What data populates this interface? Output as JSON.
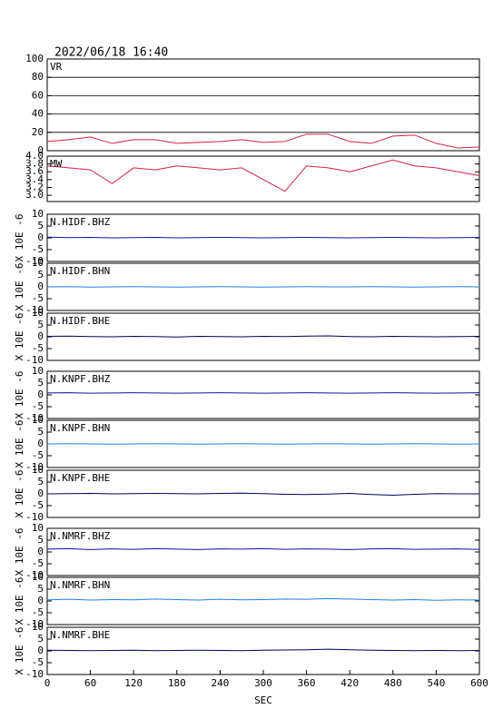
{
  "chart_data": [
    {
      "type": "line",
      "title": "2022/06/18 16:40",
      "ylim": [
        0,
        100
      ],
      "yticks": [
        0,
        20,
        40,
        60,
        80,
        100
      ],
      "grid": true,
      "xlim": [
        0,
        600
      ],
      "x": [
        0,
        30,
        60,
        90,
        120,
        150,
        180,
        210,
        240,
        270,
        300,
        330,
        360,
        390,
        420,
        450,
        480,
        510,
        540,
        570,
        600
      ],
      "series": [
        {
          "name": "VR",
          "color": "#d0204a",
          "values": [
            10,
            12,
            15,
            8,
            12,
            12,
            8,
            9,
            10,
            12,
            9,
            10,
            18,
            18,
            10,
            8,
            16,
            17,
            8,
            3,
            4
          ]
        }
      ]
    },
    {
      "type": "line",
      "ylim": [
        2.84,
        4.0
      ],
      "yticks": [
        {
          "value": 3,
          "label": "3.0"
        },
        {
          "value": 3.2,
          "label": "3.2"
        },
        {
          "value": 3.4,
          "label": "3.4"
        },
        {
          "value": 3.6,
          "label": "3.6"
        },
        {
          "value": 3.8,
          "label": "3.8"
        },
        {
          "value": 4,
          "label": "4.0"
        }
      ],
      "grid": false,
      "xlim": [
        0,
        600
      ],
      "x": [
        0,
        30,
        60,
        90,
        120,
        150,
        180,
        210,
        240,
        270,
        300,
        330,
        360,
        390,
        420,
        450,
        480,
        510,
        540,
        570,
        600
      ],
      "series": [
        {
          "name": "MW",
          "color": "#d0204a",
          "values": [
            3.75,
            3.7,
            3.65,
            3.3,
            3.7,
            3.65,
            3.75,
            3.7,
            3.65,
            3.7,
            3.4,
            3.1,
            3.75,
            3.7,
            3.6,
            3.75,
            3.9,
            3.75,
            3.7,
            3.6,
            3.5
          ]
        }
      ]
    },
    {
      "type": "line",
      "ylabel": "X 10E -6",
      "ylim": [
        -10,
        10
      ],
      "yticks": [
        -10,
        -5,
        0,
        5,
        10
      ],
      "xlim": [
        0,
        600
      ],
      "x": [
        0,
        30,
        60,
        90,
        120,
        150,
        180,
        210,
        240,
        270,
        300,
        330,
        360,
        390,
        420,
        450,
        480,
        510,
        540,
        570,
        600
      ],
      "series": [
        {
          "name": "N.HIDF.BHZ",
          "color": "#1010a0",
          "values": [
            0.3,
            0.1,
            0.2,
            0,
            0.1,
            0.2,
            0,
            0.1,
            0.2,
            0.1,
            0,
            0.1,
            0.2,
            0.1,
            0,
            0.1,
            0.2,
            0.1,
            0,
            0.1,
            0.2
          ]
        }
      ]
    },
    {
      "type": "line",
      "ylabel": "X 10E -6",
      "ylim": [
        -10,
        10
      ],
      "yticks": [
        -10,
        -5,
        0,
        5,
        10
      ],
      "xlim": [
        0,
        600
      ],
      "x": [
        0,
        30,
        60,
        90,
        120,
        150,
        180,
        210,
        240,
        270,
        300,
        330,
        360,
        390,
        420,
        450,
        480,
        510,
        540,
        570,
        600
      ],
      "series": [
        {
          "name": "N.HIDF.BHN",
          "color": "#2080e0",
          "values": [
            0,
            0.1,
            -0.1,
            0,
            0.1,
            0,
            -0.1,
            0,
            0.1,
            0,
            -0.1,
            0,
            0.1,
            0,
            0,
            0.1,
            0,
            -0.1,
            0,
            0.1,
            0
          ]
        }
      ]
    },
    {
      "type": "line",
      "ylabel": "X 10E -6",
      "ylim": [
        -10,
        10
      ],
      "yticks": [
        -10,
        -5,
        0,
        5,
        10
      ],
      "xlim": [
        0,
        600
      ],
      "x": [
        0,
        30,
        60,
        90,
        120,
        150,
        180,
        210,
        240,
        270,
        300,
        330,
        360,
        390,
        420,
        450,
        480,
        510,
        540,
        570,
        600
      ],
      "series": [
        {
          "name": "N.HIDF.BHE",
          "color": "#000060",
          "values": [
            0.2,
            0.3,
            0.1,
            0,
            0.2,
            0.1,
            -0.1,
            0.2,
            0.1,
            0,
            0.2,
            0.1,
            0.3,
            0.4,
            0.1,
            0,
            0.2,
            0.1,
            0,
            0.1,
            0.2
          ]
        }
      ]
    },
    {
      "type": "line",
      "ylabel": "X 10E -6",
      "ylim": [
        -10,
        10
      ],
      "yticks": [
        -10,
        -5,
        0,
        5,
        10
      ],
      "xlim": [
        0,
        600
      ],
      "x": [
        0,
        30,
        60,
        90,
        120,
        150,
        180,
        210,
        240,
        270,
        300,
        330,
        360,
        390,
        420,
        450,
        480,
        510,
        540,
        570,
        600
      ],
      "series": [
        {
          "name": "N.KNPF.BHZ",
          "color": "#1010a0",
          "values": [
            0.8,
            0.9,
            0.7,
            0.8,
            0.9,
            0.8,
            0.7,
            0.8,
            0.9,
            0.8,
            0.7,
            0.8,
            0.9,
            0.8,
            0.7,
            0.8,
            0.9,
            0.8,
            0.7,
            0.8,
            0.9
          ]
        }
      ]
    },
    {
      "type": "line",
      "ylabel": "X 10E -6",
      "ylim": [
        -10,
        10
      ],
      "yticks": [
        -10,
        -5,
        0,
        5,
        10
      ],
      "xlim": [
        0,
        600
      ],
      "x": [
        0,
        30,
        60,
        90,
        120,
        150,
        180,
        210,
        240,
        270,
        300,
        330,
        360,
        390,
        420,
        450,
        480,
        510,
        540,
        570,
        600
      ],
      "series": [
        {
          "name": "N.KNPF.BHN",
          "color": "#2080e0",
          "values": [
            0,
            0.1,
            0,
            -0.1,
            0,
            0.1,
            0,
            -0.1,
            0,
            0.1,
            0,
            -0.1,
            0,
            0.1,
            0,
            -0.1,
            0,
            0.1,
            0,
            -0.1,
            0
          ]
        }
      ]
    },
    {
      "type": "line",
      "ylabel": "X 10E -6",
      "ylim": [
        -10,
        10
      ],
      "yticks": [
        -10,
        -5,
        0,
        5,
        10
      ],
      "xlim": [
        0,
        600
      ],
      "x": [
        0,
        30,
        60,
        90,
        120,
        150,
        180,
        210,
        240,
        270,
        300,
        330,
        360,
        390,
        420,
        450,
        480,
        510,
        540,
        570,
        600
      ],
      "series": [
        {
          "name": "N.KNPF.BHE",
          "color": "#000060",
          "values": [
            0,
            0.1,
            0.2,
            0,
            0.1,
            0.2,
            0.1,
            0,
            0.2,
            0.3,
            0.1,
            -0.2,
            -0.3,
            -0.1,
            0.2,
            -0.3,
            -0.6,
            -0.2,
            0.1,
            0,
            0
          ]
        }
      ]
    },
    {
      "type": "line",
      "ylabel": "X 10E -6",
      "ylim": [
        -10,
        10
      ],
      "yticks": [
        -10,
        -5,
        0,
        5,
        10
      ],
      "xlim": [
        0,
        600
      ],
      "x": [
        0,
        30,
        60,
        90,
        120,
        150,
        180,
        210,
        240,
        270,
        300,
        330,
        360,
        390,
        420,
        450,
        480,
        510,
        540,
        570,
        600
      ],
      "series": [
        {
          "name": "N.NMRF.BHZ",
          "color": "#1010a0",
          "values": [
            1.2,
            1.4,
            1.0,
            1.3,
            1.1,
            1.4,
            1.2,
            1.0,
            1.3,
            1.2,
            1.4,
            1.1,
            1.3,
            1.2,
            1.0,
            1.3,
            1.4,
            1.1,
            1.2,
            1.3,
            1.1
          ]
        }
      ]
    },
    {
      "type": "line",
      "ylabel": "X 10E -6",
      "ylim": [
        -10,
        10
      ],
      "yticks": [
        -10,
        -5,
        0,
        5,
        10
      ],
      "xlim": [
        0,
        600
      ],
      "x": [
        0,
        30,
        60,
        90,
        120,
        150,
        180,
        210,
        240,
        270,
        300,
        330,
        360,
        390,
        420,
        450,
        480,
        510,
        540,
        570,
        600
      ],
      "series": [
        {
          "name": "N.NMRF.BHN",
          "color": "#2080e0",
          "values": [
            0.5,
            0.7,
            0.4,
            0.6,
            0.5,
            0.8,
            0.6,
            0.4,
            0.7,
            0.5,
            0.6,
            0.8,
            0.7,
            1.0,
            0.8,
            0.6,
            0.4,
            0.6,
            0.3,
            0.5,
            0.4
          ]
        }
      ]
    },
    {
      "type": "line",
      "ylabel": "X 10E -6",
      "ylim": [
        -10,
        10
      ],
      "yticks": [
        -10,
        -5,
        0,
        5,
        10
      ],
      "xlim": [
        0,
        600
      ],
      "x": [
        0,
        30,
        60,
        90,
        120,
        150,
        180,
        210,
        240,
        270,
        300,
        330,
        360,
        390,
        420,
        450,
        480,
        510,
        540,
        570,
        600
      ],
      "xlabel": "SEC",
      "xticks": [
        0,
        60,
        120,
        180,
        240,
        300,
        360,
        420,
        480,
        540,
        600
      ],
      "series": [
        {
          "name": "N.NMRF.BHE",
          "color": "#000060",
          "values": [
            0.3,
            0.2,
            0.1,
            0.2,
            0.3,
            0.1,
            0.2,
            0.3,
            0.2,
            0.1,
            0.3,
            0.4,
            0.5,
            0.7,
            0.5,
            0.3,
            0.2,
            0.1,
            0.2,
            0.1,
            0.2
          ]
        }
      ]
    }
  ]
}
